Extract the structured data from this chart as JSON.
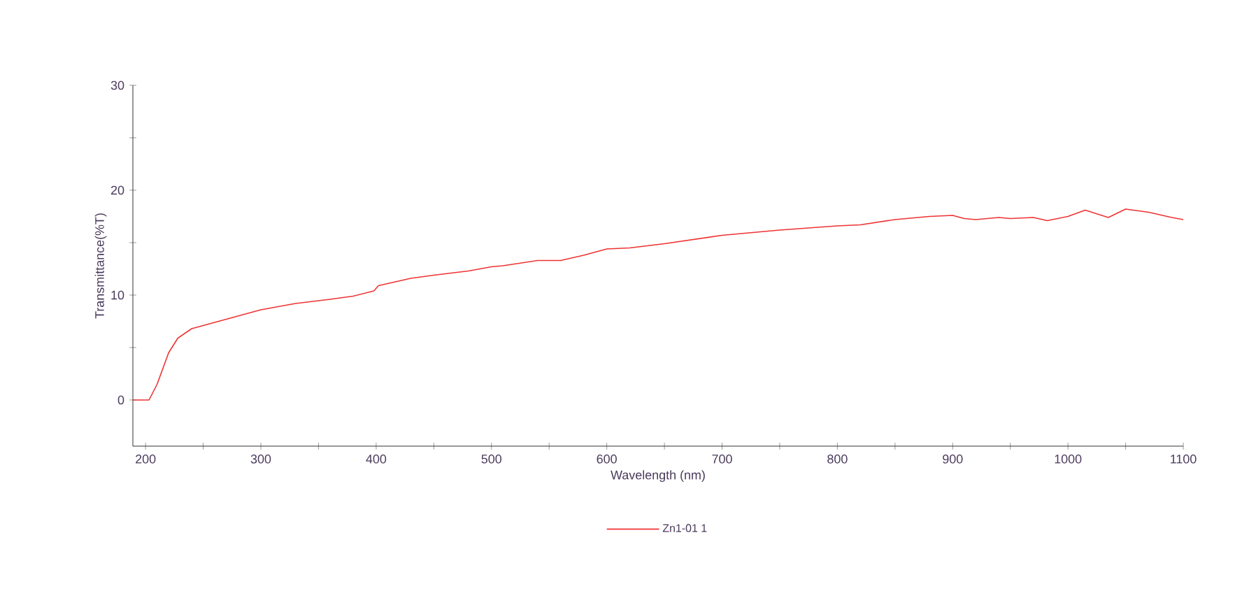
{
  "chart_data": {
    "type": "line",
    "xlabel": "Wavelength (nm)",
    "ylabel": "Transmittance(%T)",
    "legend": "bottom",
    "grid": false,
    "xlim": [
      189,
      1100
    ],
    "ylim": [
      -4.4,
      30
    ],
    "xticks": [
      200,
      {
        "value": 250,
        "label": null
      },
      300,
      {
        "value": 350,
        "label": null
      },
      400,
      {
        "value": 450,
        "label": null
      },
      500,
      {
        "value": 550,
        "label": null
      },
      600,
      {
        "value": 650,
        "label": null
      },
      700,
      {
        "value": 750,
        "label": null
      },
      800,
      {
        "value": 850,
        "label": null
      },
      900,
      {
        "value": 950,
        "label": null
      },
      1000,
      {
        "value": 1050,
        "label": null
      },
      1100
    ],
    "yticks": [
      0,
      {
        "value": 5,
        "label": null
      },
      10,
      {
        "value": 15,
        "label": null
      },
      20,
      {
        "value": 25,
        "label": null
      },
      30
    ],
    "series": [
      {
        "name": "Zn1-01 1",
        "color": "#ee3333",
        "x": [
          189,
          203,
          210,
          220,
          228,
          240,
          260,
          280,
          300,
          330,
          360,
          380,
          398,
          402,
          430,
          450,
          480,
          500,
          510,
          540,
          560,
          580,
          600,
          620,
          650,
          700,
          750,
          800,
          820,
          850,
          880,
          900,
          910,
          920,
          940,
          950,
          970,
          982,
          1000,
          1015,
          1035,
          1050,
          1070,
          1090,
          1100
        ],
        "values": [
          0,
          0,
          1.5,
          4.5,
          5.9,
          6.8,
          7.4,
          8,
          8.6,
          9.2,
          9.6,
          9.9,
          10.4,
          10.9,
          11.6,
          11.9,
          12.3,
          12.7,
          12.8,
          13.3,
          13.3,
          13.8,
          14.4,
          14.5,
          14.9,
          15.7,
          16.2,
          16.6,
          16.7,
          17.2,
          17.5,
          17.6,
          17.3,
          17.2,
          17.4,
          17.3,
          17.4,
          17.1,
          17.5,
          18.1,
          17.4,
          18.2,
          17.9,
          17.4,
          17.2
        ]
      }
    ]
  }
}
